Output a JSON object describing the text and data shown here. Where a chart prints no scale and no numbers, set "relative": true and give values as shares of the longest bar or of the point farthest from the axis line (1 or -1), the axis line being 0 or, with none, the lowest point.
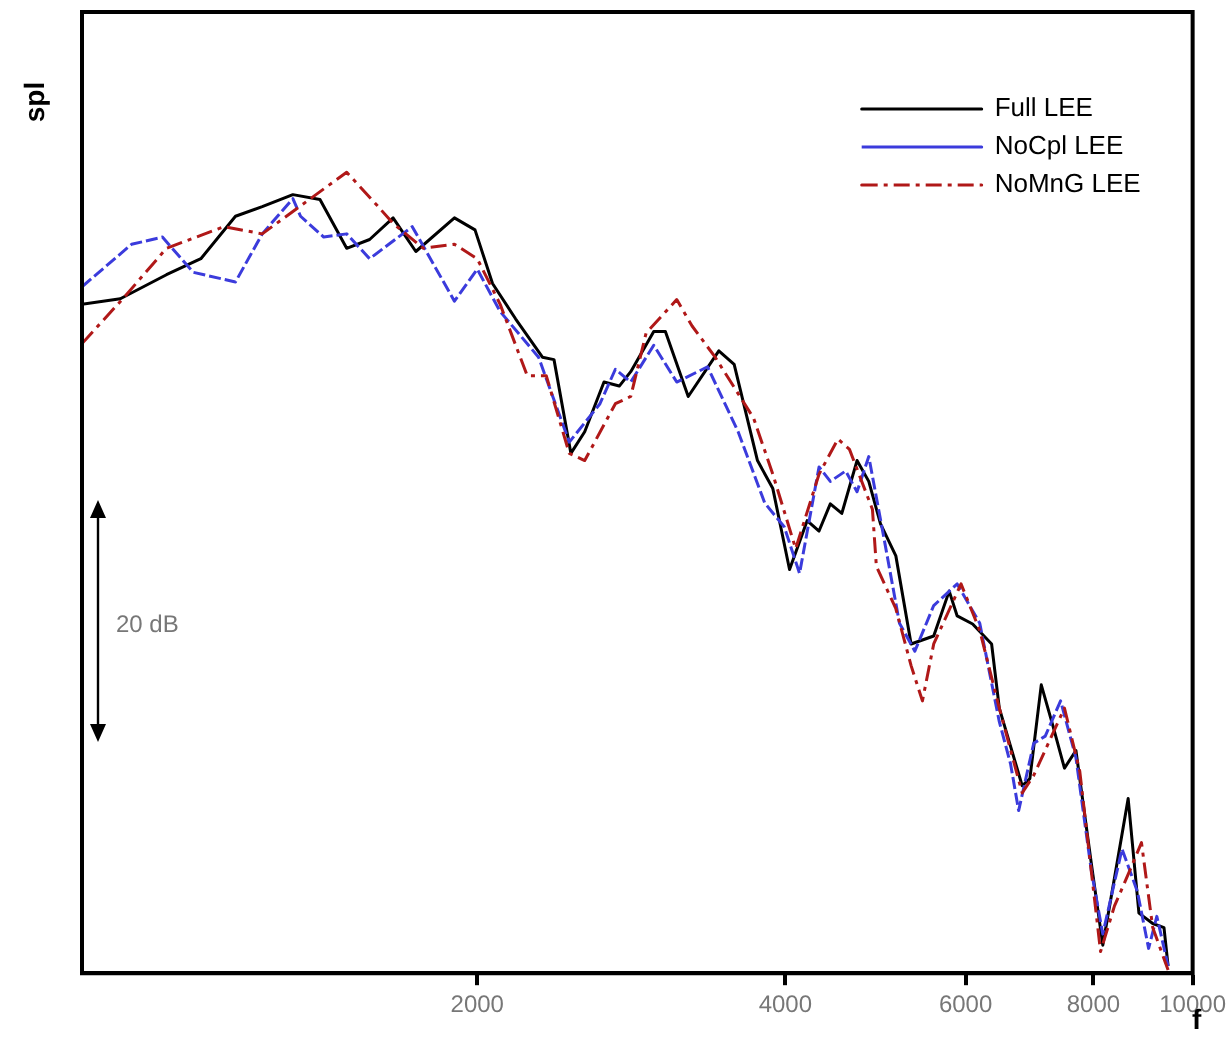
{
  "chart_data": {
    "type": "line",
    "relative": true,
    "ylabel": "spl",
    "xlabel": "f",
    "log": "x",
    "xlim": [
      822,
      10000
    ],
    "xticks": [
      2000,
      4000,
      6000,
      8000,
      10000
    ],
    "legend": "top right",
    "grid": false,
    "marker": "none",
    "annotations": [
      "20 dB"
    ],
    "series": [
      {
        "name": "Full LEE",
        "color": "#000000",
        "line_style": "solid",
        "x": [
          822,
          896,
          994,
          1074,
          1161,
          1233,
          1321,
          1404,
          1491,
          1570,
          1655,
          1742,
          1900,
          1990,
          2070,
          2180,
          2316,
          2377,
          2469,
          2547,
          2660,
          2753,
          2825,
          2975,
          3054,
          3215,
          3444,
          3565,
          3757,
          3889,
          4038,
          4201,
          4315,
          4426,
          4542,
          4700,
          4826,
          4955,
          5129,
          5308,
          5585,
          5783,
          5888,
          6096,
          6362,
          6473,
          6815,
          6934,
          7114,
          7302,
          7495,
          7691,
          7962,
          8170,
          8388,
          8650,
          8862,
          9141,
          9376,
          9463
        ],
        "values": [
          0.835,
          0.842,
          0.872,
          0.892,
          0.945,
          0.957,
          0.972,
          0.966,
          0.905,
          0.916,
          0.943,
          0.901,
          0.943,
          0.928,
          0.861,
          0.817,
          0.769,
          0.766,
          0.649,
          0.676,
          0.738,
          0.733,
          0.751,
          0.801,
          0.801,
          0.72,
          0.777,
          0.76,
          0.64,
          0.605,
          0.504,
          0.565,
          0.552,
          0.586,
          0.574,
          0.64,
          0.614,
          0.561,
          0.521,
          0.411,
          0.421,
          0.477,
          0.446,
          0.436,
          0.411,
          0.331,
          0.234,
          0.243,
          0.36,
          0.309,
          0.256,
          0.278,
          0.137,
          0.035,
          0.119,
          0.218,
          0.075,
          0.062,
          0.057,
          0.009
        ]
      },
      {
        "name": "NoCpl LEE",
        "color": "#3b3bdc",
        "line_style": "dashed",
        "x": [
          822,
          919,
          985,
          1056,
          1161,
          1233,
          1321,
          1344,
          1416,
          1491,
          1570,
          1728,
          1900,
          2000,
          2106,
          2296,
          2460,
          2636,
          2729,
          2825,
          2975,
          3133,
          3358,
          3597,
          3819,
          3991,
          4130,
          4315,
          4426,
          4581,
          4700,
          4826,
          4994,
          5171,
          5353,
          5585,
          5888,
          6194,
          6473,
          6640,
          6761,
          6994,
          7178,
          7430,
          7691,
          7962,
          8170,
          8531,
          8831,
          9057,
          9226,
          9463
        ],
        "values": [
          0.857,
          0.91,
          0.919,
          0.875,
          0.863,
          0.923,
          0.967,
          0.945,
          0.919,
          0.923,
          0.892,
          0.932,
          0.839,
          0.879,
          0.826,
          0.769,
          0.663,
          0.711,
          0.754,
          0.738,
          0.784,
          0.738,
          0.757,
          0.676,
          0.587,
          0.557,
          0.499,
          0.632,
          0.614,
          0.627,
          0.601,
          0.645,
          0.543,
          0.437,
          0.402,
          0.459,
          0.486,
          0.437,
          0.314,
          0.261,
          0.203,
          0.287,
          0.296,
          0.34,
          0.269,
          0.128,
          0.049,
          0.155,
          0.102,
          0.031,
          0.071,
          0.009
        ]
      },
      {
        "name": "NoMnG LEE",
        "color": "#b01818",
        "line_style": "dashdot",
        "x": [
          822,
          904,
          994,
          1131,
          1233,
          1491,
          1598,
          1655,
          1772,
          1900,
          2000,
          2106,
          2238,
          2336,
          2460,
          2547,
          2729,
          2825,
          2924,
          3133,
          3243,
          3416,
          3724,
          3889,
          4094,
          4315,
          4503,
          4621,
          4866,
          4909,
          5129,
          5308,
          5445,
          5585,
          5939,
          6194,
          6473,
          6815,
          6994,
          7495,
          7758,
          8129,
          8388,
          8681,
          8913,
          9141,
          9463
        ],
        "values": [
          0.786,
          0.844,
          0.905,
          0.932,
          0.923,
          1.0,
          0.958,
          0.936,
          0.905,
          0.91,
          0.892,
          0.835,
          0.746,
          0.746,
          0.649,
          0.64,
          0.711,
          0.72,
          0.799,
          0.841,
          0.808,
          0.769,
          0.693,
          0.623,
          0.53,
          0.623,
          0.667,
          0.654,
          0.579,
          0.508,
          0.455,
          0.384,
          0.34,
          0.411,
          0.486,
          0.428,
          0.331,
          0.225,
          0.247,
          0.331,
          0.252,
          0.027,
          0.084,
          0.128,
          0.163,
          0.057,
          0.004
        ]
      }
    ]
  }
}
